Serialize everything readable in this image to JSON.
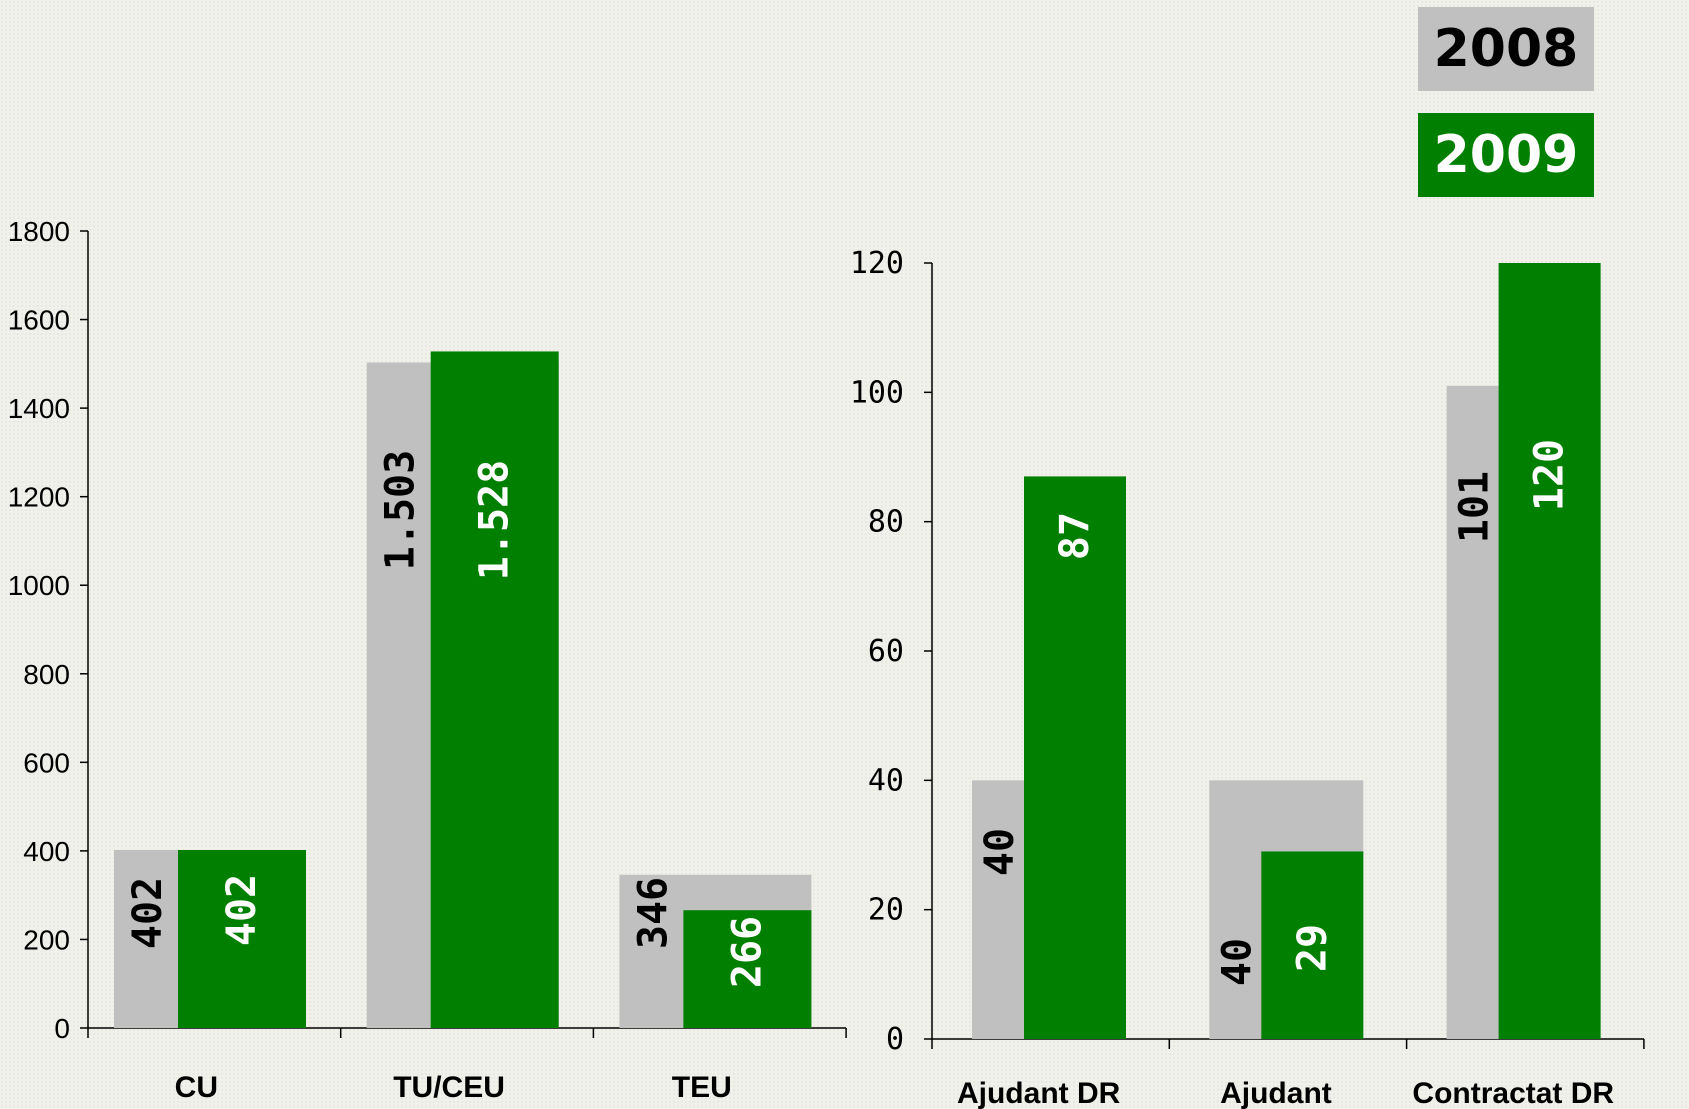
{
  "legend": [
    {
      "label": "2008",
      "color": "#c0c0c0"
    },
    {
      "label": "2009",
      "color": "#007f00"
    }
  ],
  "chart_data": [
    {
      "type": "bar",
      "categories": [
        "CU",
        "TU/CEU",
        "TEU"
      ],
      "series": [
        {
          "name": "2008",
          "values": [
            402,
            1503,
            346
          ],
          "labels": [
            "402",
            "1.503",
            "346"
          ],
          "color": "#c0c0c0",
          "label_color": "#000000"
        },
        {
          "name": "2009",
          "values": [
            402,
            1528,
            266
          ],
          "labels": [
            "402",
            "1.528",
            "266"
          ],
          "color": "#007f00",
          "label_color": "#ffffff"
        }
      ],
      "ylim": [
        0,
        1800
      ],
      "yticks": [
        "0",
        "200",
        "400",
        "600",
        "800",
        "1000",
        "1200",
        "1400",
        "1600",
        "1800"
      ],
      "grid": false
    },
    {
      "type": "bar",
      "categories": [
        "Ajudant DR",
        "Ajudant",
        "Contractat DR"
      ],
      "series": [
        {
          "name": "2008",
          "values": [
            40,
            40,
            101
          ],
          "labels": [
            "40",
            "40",
            "101"
          ],
          "color": "#c0c0c0",
          "label_color": "#000000"
        },
        {
          "name": "2009",
          "values": [
            87,
            29,
            120
          ],
          "labels": [
            "87",
            "29",
            "120"
          ],
          "color": "#007f00",
          "label_color": "#ffffff"
        }
      ],
      "ylim": [
        0,
        120
      ],
      "yticks": [
        "0",
        "20",
        "40",
        "60",
        "80",
        "100",
        "120"
      ],
      "grid": false
    }
  ]
}
